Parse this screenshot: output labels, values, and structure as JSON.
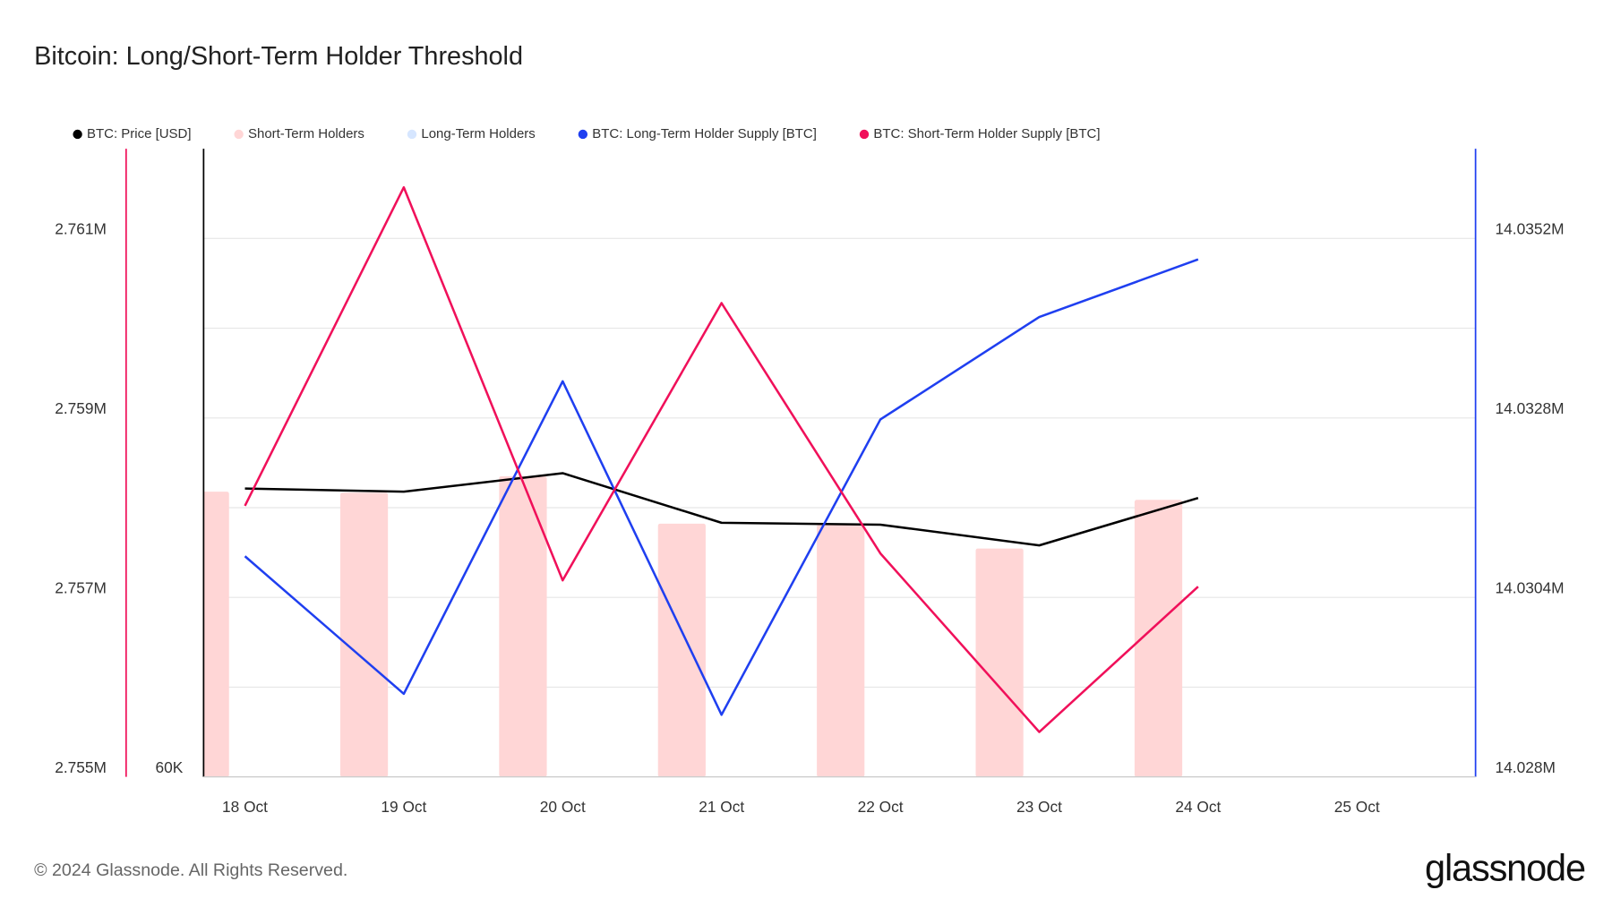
{
  "chart_data": {
    "type": "line",
    "title": "Bitcoin: Long/Short-Term Holder Threshold",
    "footer": "© 2024 Glassnode. All Rights Reserved.",
    "brand": "glassnode",
    "categories": [
      "18 Oct",
      "19 Oct",
      "20 Oct",
      "21 Oct",
      "22 Oct",
      "23 Oct",
      "24 Oct",
      "25 Oct"
    ],
    "ylim": [
      2755000,
      2762000
    ],
    "yticks": [
      {
        "value": 2755000,
        "label": "2.755M"
      },
      {
        "value": 2757000,
        "label": "2.757M"
      },
      {
        "value": 2759000,
        "label": "2.759M"
      },
      {
        "value": 2761000,
        "label": "2.761M"
      }
    ],
    "y_minor_ticks": [
      2756000,
      2758000,
      2760000
    ],
    "y2lim": [
      14028000,
      14036400
    ],
    "y2ticks": [
      {
        "value": 14028000,
        "label": "14.028M"
      },
      {
        "value": 14030400,
        "label": "14.0304M"
      },
      {
        "value": 14032800,
        "label": "14.0328M"
      },
      {
        "value": 14035200,
        "label": "14.0352M"
      }
    ],
    "y3lim": [
      60000,
      80000
    ],
    "y3ticks": [
      {
        "value": 60000,
        "label": "60K"
      }
    ],
    "grid": true,
    "legend": "top-left",
    "series": [
      {
        "name": "BTC: Price [USD]",
        "type": "line",
        "axis": "y3",
        "color": "#000000",
        "values": [
          69180,
          69080,
          69670,
          68090,
          68030,
          67370,
          68880,
          null
        ]
      },
      {
        "name": "Short-Term Holders",
        "type": "bar",
        "axis": "y3",
        "color": "#ffd6d6",
        "values": [
          69080,
          69050,
          69570,
          68060,
          68030,
          67270,
          68820,
          null
        ]
      },
      {
        "name": "Long-Term Holders",
        "type": "bar",
        "axis": "y3",
        "color": "#d6e6ff",
        "values": [
          null,
          null,
          null,
          null,
          null,
          null,
          null,
          null
        ]
      },
      {
        "name": "BTC: Long-Term Holder Supply [BTC]",
        "type": "line",
        "axis": "y2",
        "color": "#1f3ff0",
        "values": [
          14030950,
          14029110,
          14033290,
          14028830,
          14032780,
          14034150,
          14034920,
          null
        ]
      },
      {
        "name": "BTC: Short-Term Holder Supply [BTC]",
        "type": "line",
        "axis": "y",
        "color": "#f0105a",
        "values": [
          2758020,
          2761570,
          2757190,
          2760280,
          2757490,
          2755500,
          2757120,
          null
        ]
      }
    ]
  }
}
